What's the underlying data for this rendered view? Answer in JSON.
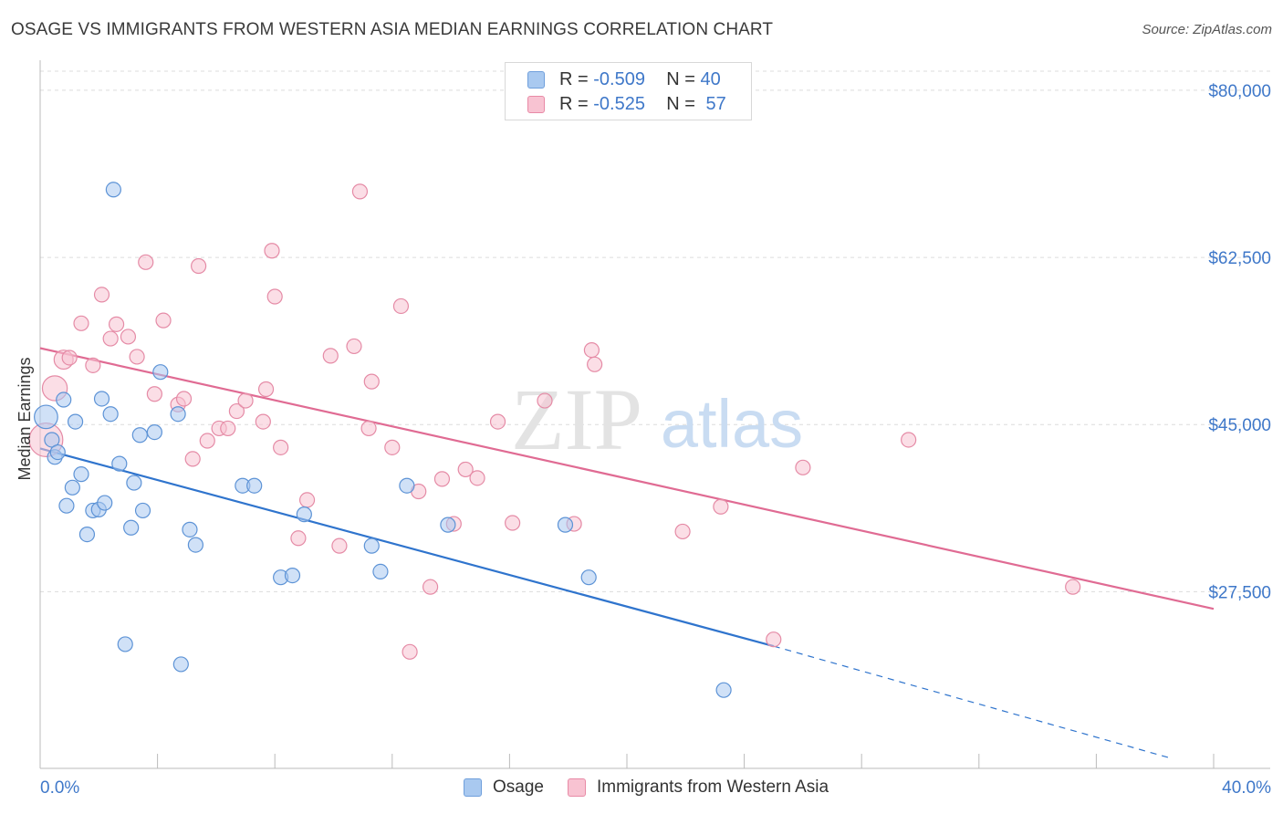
{
  "header": {
    "title": "OSAGE VS IMMIGRANTS FROM WESTERN ASIA MEDIAN EARNINGS CORRELATION CHART",
    "source": "Source: ZipAtlas.com"
  },
  "watermark": {
    "part1": "ZIP",
    "part2": "atlas"
  },
  "legend_top": [
    {
      "r_label": "R =",
      "r_value": "-0.509",
      "n_label": "N =",
      "n_value": "40",
      "color": "#a9c9f0",
      "border": "#6f9fdc"
    },
    {
      "r_label": "R =",
      "r_value": "-0.525",
      "n_label": "N =",
      "n_value": "57",
      "color": "#f8c3d2",
      "border": "#e88aa6"
    }
  ],
  "bottom_legend": [
    {
      "label": "Osage",
      "color": "#a9c9f0",
      "border": "#6f9fdc"
    },
    {
      "label": "Immigrants from Western Asia",
      "color": "#f8c3d2",
      "border": "#e88aa6"
    }
  ],
  "chart_data": {
    "type": "scatter",
    "ylabel": "Median Earnings",
    "x_tick_labels": [
      "0.0%",
      "40.0%"
    ],
    "y_tick_labels": [
      "$80,000",
      "$62,500",
      "$45,000",
      "$27,500"
    ],
    "y_ticks": [
      80000,
      62500,
      45000,
      27500
    ],
    "xlim": [
      0,
      40
    ],
    "ylim": [
      9000,
      82000
    ],
    "grid": true,
    "series": [
      {
        "name": "Osage",
        "color": "#a9c9f0",
        "stroke": "#5d93d6",
        "trend_color": "#2f74cd",
        "trend": {
          "x0": 0,
          "y0": 42500,
          "x1": 25,
          "y1": 21800,
          "dash_to_x": 38.5,
          "dash_to_y": 10100
        },
        "points": [
          [
            0.2,
            45800,
            1.6
          ],
          [
            0.4,
            43400,
            1
          ],
          [
            0.5,
            41600,
            1
          ],
          [
            0.6,
            42100,
            1
          ],
          [
            0.8,
            47600,
            1
          ],
          [
            0.9,
            36500,
            1
          ],
          [
            1.1,
            38400,
            1
          ],
          [
            1.2,
            45300,
            1
          ],
          [
            1.4,
            39800,
            1
          ],
          [
            1.6,
            33500,
            1
          ],
          [
            1.8,
            36000,
            1
          ],
          [
            2.0,
            36100,
            1
          ],
          [
            2.1,
            47700,
            1
          ],
          [
            2.2,
            36800,
            1
          ],
          [
            2.4,
            46100,
            1
          ],
          [
            2.5,
            69600,
            1
          ],
          [
            2.7,
            40900,
            1
          ],
          [
            2.9,
            22000,
            1
          ],
          [
            3.1,
            34200,
            1
          ],
          [
            3.2,
            38900,
            1
          ],
          [
            3.4,
            43900,
            1
          ],
          [
            3.5,
            36000,
            1
          ],
          [
            3.9,
            44200,
            1
          ],
          [
            4.1,
            50500,
            1
          ],
          [
            4.7,
            46100,
            1
          ],
          [
            4.8,
            19900,
            1
          ],
          [
            5.1,
            34000,
            1
          ],
          [
            5.3,
            32400,
            1
          ],
          [
            6.9,
            38600,
            1
          ],
          [
            7.3,
            38600,
            1
          ],
          [
            8.2,
            29000,
            1
          ],
          [
            8.6,
            29200,
            1
          ],
          [
            9.0,
            35600,
            1
          ],
          [
            11.3,
            32300,
            1
          ],
          [
            11.6,
            29600,
            1
          ],
          [
            12.5,
            38600,
            1
          ],
          [
            13.9,
            34500,
            1
          ],
          [
            17.9,
            34500,
            1
          ],
          [
            18.7,
            29000,
            1
          ],
          [
            23.3,
            17200,
            1
          ]
        ]
      },
      {
        "name": "Immigrants from Western Asia",
        "color": "#f8c3d2",
        "stroke": "#e58ba6",
        "trend_color": "#e06b93",
        "trend": {
          "x0": 0,
          "y0": 53000,
          "x1": 40,
          "y1": 25700
        },
        "points": [
          [
            0.2,
            43400,
            2.3
          ],
          [
            0.5,
            48800,
            1.7
          ],
          [
            0.8,
            51800,
            1.3
          ],
          [
            1.0,
            52000,
            1
          ],
          [
            1.4,
            55600,
            1
          ],
          [
            1.8,
            51200,
            1
          ],
          [
            2.1,
            58600,
            1
          ],
          [
            2.4,
            54000,
            1
          ],
          [
            2.6,
            55500,
            1
          ],
          [
            3.0,
            54200,
            1
          ],
          [
            3.3,
            52100,
            1
          ],
          [
            3.6,
            62000,
            1
          ],
          [
            3.9,
            48200,
            1
          ],
          [
            4.2,
            55900,
            1
          ],
          [
            4.7,
            47100,
            1
          ],
          [
            4.9,
            47700,
            1
          ],
          [
            5.2,
            41400,
            1
          ],
          [
            5.4,
            61600,
            1
          ],
          [
            5.7,
            43300,
            1
          ],
          [
            6.1,
            44600,
            1
          ],
          [
            6.4,
            44600,
            1
          ],
          [
            6.7,
            46400,
            1
          ],
          [
            7.0,
            47500,
            1
          ],
          [
            7.6,
            45300,
            1
          ],
          [
            7.7,
            48700,
            1
          ],
          [
            7.9,
            63200,
            1
          ],
          [
            8.0,
            58400,
            1
          ],
          [
            8.2,
            42600,
            1
          ],
          [
            8.8,
            33100,
            1
          ],
          [
            9.1,
            37100,
            1
          ],
          [
            9.9,
            52200,
            1
          ],
          [
            10.2,
            32300,
            1
          ],
          [
            10.7,
            53200,
            1
          ],
          [
            10.9,
            69400,
            1
          ],
          [
            11.2,
            44600,
            1
          ],
          [
            11.3,
            49500,
            1
          ],
          [
            12.0,
            42600,
            1
          ],
          [
            12.3,
            57400,
            1
          ],
          [
            12.6,
            21200,
            1
          ],
          [
            12.9,
            38000,
            1
          ],
          [
            13.3,
            28000,
            1
          ],
          [
            13.7,
            39300,
            1
          ],
          [
            14.1,
            34600,
            1
          ],
          [
            14.5,
            40300,
            1
          ],
          [
            14.9,
            39400,
            1
          ],
          [
            15.6,
            45300,
            1
          ],
          [
            16.1,
            34700,
            1
          ],
          [
            17.2,
            47500,
            1
          ],
          [
            18.2,
            34600,
            1
          ],
          [
            18.8,
            52800,
            1
          ],
          [
            18.9,
            51300,
            1
          ],
          [
            21.9,
            33800,
            1
          ],
          [
            23.2,
            36400,
            1
          ],
          [
            25.0,
            22500,
            1
          ],
          [
            26.0,
            40500,
            1
          ],
          [
            29.6,
            43400,
            1
          ],
          [
            35.2,
            28000,
            1
          ]
        ]
      }
    ]
  }
}
